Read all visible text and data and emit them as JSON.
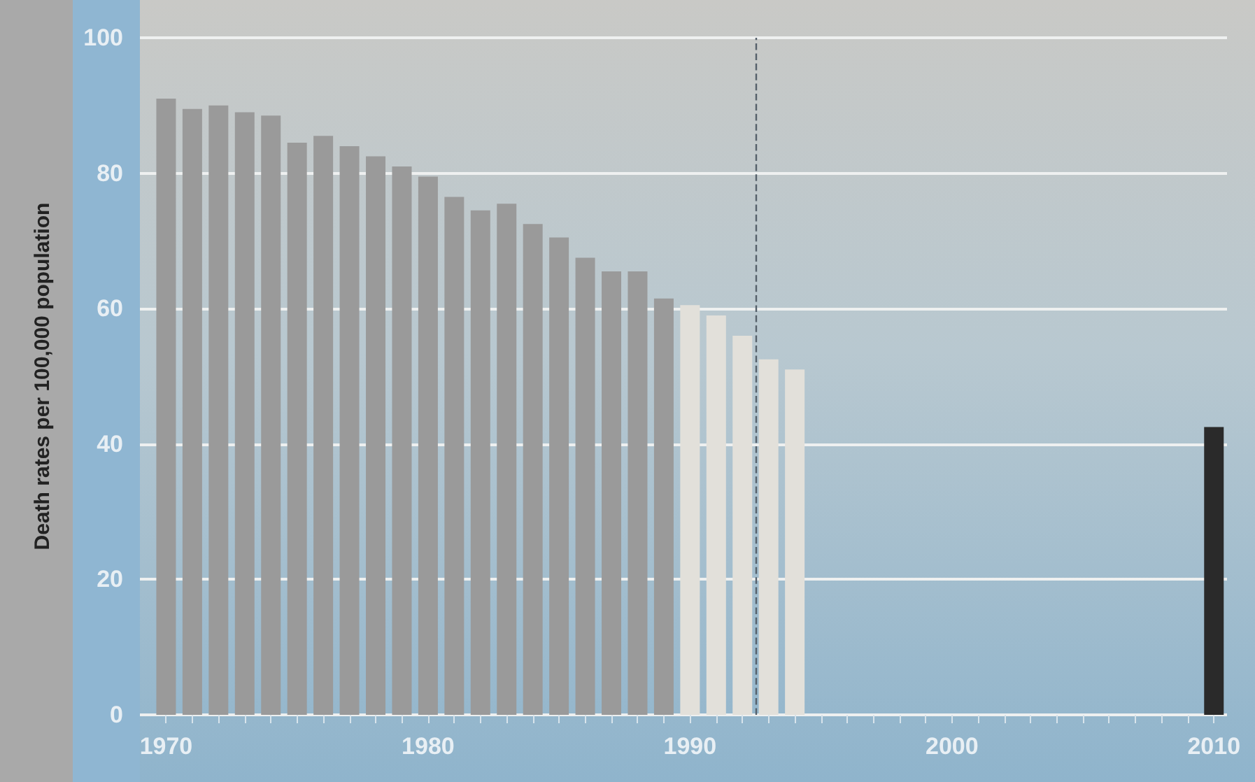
{
  "chart_data": {
    "type": "bar",
    "ylabel": "Death rates per 100,000 population",
    "series": [
      {
        "color": "#9a9a9a",
        "x": [
          1970,
          1971,
          1972,
          1973,
          1974,
          1975,
          1976,
          1977,
          1978,
          1979,
          1980,
          1981,
          1982,
          1983,
          1984,
          1985,
          1986,
          1987,
          1988,
          1989
        ],
        "values": [
          91,
          89.5,
          90,
          89,
          88.5,
          84.5,
          85.5,
          84,
          82.5,
          81,
          79.5,
          76.5,
          74.5,
          75.5,
          72.5,
          70.5,
          67.5,
          65.5,
          65.5,
          61.5
        ]
      },
      {
        "color": "#e2e0da",
        "x": [
          1990,
          1991,
          1992,
          1993,
          1994
        ],
        "values": [
          60.5,
          59,
          56,
          52.5,
          51
        ]
      },
      {
        "color": "#2a2a2a",
        "x": [
          2010
        ],
        "values": [
          42.5
        ]
      }
    ],
    "xlim": [
      1969,
      2010.5
    ],
    "xticks": [
      1970,
      {
        "value": 1971,
        "label": null
      },
      {
        "value": 1972,
        "label": null
      },
      {
        "value": 1973,
        "label": null
      },
      {
        "value": 1974,
        "label": null
      },
      {
        "value": 1975,
        "label": null
      },
      {
        "value": 1976,
        "label": null
      },
      {
        "value": 1977,
        "label": null
      },
      {
        "value": 1978,
        "label": null
      },
      {
        "value": 1979,
        "label": null
      },
      1980,
      {
        "value": 1981,
        "label": null
      },
      {
        "value": 1982,
        "label": null
      },
      {
        "value": 1983,
        "label": null
      },
      {
        "value": 1984,
        "label": null
      },
      {
        "value": 1985,
        "label": null
      },
      {
        "value": 1986,
        "label": null
      },
      {
        "value": 1987,
        "label": null
      },
      {
        "value": 1988,
        "label": null
      },
      {
        "value": 1989,
        "label": null
      },
      1990,
      {
        "value": 1991,
        "label": null
      },
      {
        "value": 1992,
        "label": null
      },
      {
        "value": 1993,
        "label": null
      },
      {
        "value": 1994,
        "label": null
      },
      {
        "value": 1995,
        "label": null
      },
      {
        "value": 1996,
        "label": null
      },
      {
        "value": 1997,
        "label": null
      },
      {
        "value": 1998,
        "label": null
      },
      {
        "value": 1999,
        "label": null
      },
      2000,
      {
        "value": 2001,
        "label": null
      },
      {
        "value": 2002,
        "label": null
      },
      {
        "value": 2003,
        "label": null
      },
      {
        "value": 2004,
        "label": null
      },
      {
        "value": 2005,
        "label": null
      },
      {
        "value": 2006,
        "label": null
      },
      {
        "value": 2007,
        "label": null
      },
      {
        "value": 2008,
        "label": null
      },
      {
        "value": 2009,
        "label": null
      },
      2010
    ],
    "ylim": [
      0,
      100
    ],
    "yticks": [
      0,
      20,
      40,
      60,
      80,
      100
    ],
    "grid": "y",
    "ref_lines": [
      {
        "axis": "x",
        "value": 1992.5,
        "color": "#55606a",
        "line_style": "dashed"
      }
    ]
  }
}
